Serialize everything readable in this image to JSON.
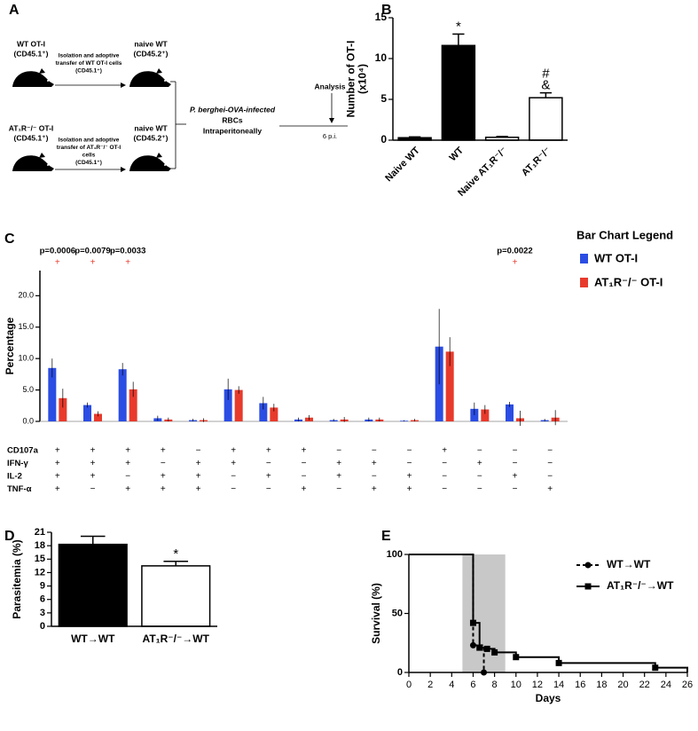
{
  "diagram": {
    "panel": "A",
    "rows": [
      {
        "donor": [
          "WT OT-I",
          "(CD45.1⁺)"
        ],
        "transfer": [
          "Isolation and adoptive",
          "transfer of WT OT-I cells",
          "(CD45.1⁺)"
        ],
        "recipient": [
          "naive WT",
          "(CD45.2⁺)"
        ]
      },
      {
        "donor": [
          "AT₁R⁻/⁻ OT-I",
          "(CD45.1⁺)"
        ],
        "transfer": [
          "Isolation and adoptive",
          "transfer of AT₁R⁻/⁻ OT-I",
          "cells",
          "(CD45.1⁺)"
        ],
        "recipient": [
          "naive WT",
          "(CD45.2⁺)"
        ]
      }
    ],
    "infection": [
      "P. berghei-OVA-infected",
      "RBCs",
      "Intraperitoneally"
    ],
    "analysis": "Analysis",
    "timepoint": "6 p.i."
  },
  "chart_data": [
    {
      "panel": "B",
      "type": "bar",
      "ylabel": [
        "Number of OT-I",
        "(x10⁴)"
      ],
      "categories": [
        "Naive WT",
        "WT",
        "Naive AT₁R⁻/⁻",
        "AT₁R⁻/⁻"
      ],
      "values": [
        0.3,
        11.6,
        0.35,
        5.2
      ],
      "errors": [
        0.1,
        1.4,
        0.1,
        0.6
      ],
      "colors": [
        "#000000",
        "#000000",
        "#ffffff",
        "#ffffff"
      ],
      "annotations": [
        null,
        [
          "*"
        ],
        null,
        [
          "#",
          "&"
        ]
      ],
      "ylim": [
        0,
        15
      ],
      "yticks": [
        0,
        5,
        10,
        15
      ]
    },
    {
      "panel": "C",
      "type": "grouped_bar",
      "ylabel": [
        "Percentage"
      ],
      "ylim": [
        0,
        24
      ],
      "yticks": [
        {
          "value": 0,
          "label": "0.0"
        },
        {
          "value": 5,
          "label": "5.0"
        },
        {
          "value": 10,
          "label": "10.0"
        },
        {
          "value": 15,
          "label": "15.0"
        },
        {
          "value": 20,
          "label": "20.0"
        }
      ],
      "legend_title": "Bar Chart Legend",
      "series": [
        {
          "name": "WT OT-I",
          "color": "#2b4de3",
          "values": [
            8.5,
            2.6,
            8.3,
            0.5,
            0.2,
            5.1,
            2.9,
            0.3,
            0.2,
            0.3,
            0.1,
            11.9,
            2.0,
            2.7,
            0.2
          ],
          "errors": [
            1.5,
            0.4,
            1.0,
            0.4,
            0.2,
            1.7,
            1.0,
            0.3,
            0.2,
            0.3,
            0.1,
            6.0,
            1.0,
            0.4,
            0.2
          ]
        },
        {
          "name": "AT₁R⁻/⁻ OT-I",
          "color": "#e83a2c",
          "values": [
            3.7,
            1.2,
            5.1,
            0.3,
            0.2,
            5.0,
            2.2,
            0.6,
            0.3,
            0.3,
            0.2,
            11.1,
            1.9,
            0.5,
            0.6
          ],
          "errors": [
            1.5,
            0.4,
            1.2,
            0.3,
            0.3,
            0.6,
            0.6,
            0.4,
            0.4,
            0.3,
            0.2,
            2.3,
            0.7,
            1.2,
            1.2
          ]
        }
      ],
      "p_values": [
        "p=0.0006",
        "p=0.0079",
        "p=0.0033",
        null,
        null,
        null,
        null,
        null,
        null,
        null,
        null,
        null,
        null,
        "p=0.0022",
        null
      ],
      "significance": [
        "+",
        "+",
        "+",
        null,
        null,
        null,
        null,
        null,
        null,
        null,
        null,
        null,
        null,
        "+",
        null
      ],
      "marker_rows": [
        "CD107a",
        "IFN-γ",
        "IL-2",
        "TNF-α"
      ],
      "marker_table": [
        [
          "+",
          "+",
          "+",
          "+",
          "−",
          "+",
          "+",
          "+",
          "−",
          "−",
          "−",
          "+",
          "−",
          "−",
          "−"
        ],
        [
          "+",
          "+",
          "+",
          "−",
          "+",
          "+",
          "−",
          "−",
          "+",
          "+",
          "−",
          "−",
          "+",
          "−",
          "−"
        ],
        [
          "+",
          "+",
          "−",
          "+",
          "+",
          "−",
          "+",
          "−",
          "+",
          "−",
          "+",
          "−",
          "−",
          "+",
          "−"
        ],
        [
          "+",
          "−",
          "+",
          "+",
          "+",
          "−",
          "−",
          "+",
          "−",
          "+",
          "+",
          "−",
          "−",
          "−",
          "+"
        ]
      ]
    },
    {
      "panel": "D",
      "type": "bar",
      "ylabel": [
        "Parasitemia (%)"
      ],
      "categories": [
        "WT→WT",
        "AT₁R⁻/⁻→WT"
      ],
      "values": [
        18.3,
        13.5
      ],
      "errors": [
        1.8,
        1.0
      ],
      "colors": [
        "#000000",
        "#ffffff"
      ],
      "annotations": [
        null,
        [
          "*"
        ]
      ],
      "ylim": [
        0,
        21
      ],
      "yticks": [
        0,
        3,
        6,
        9,
        12,
        15,
        18,
        21
      ]
    },
    {
      "panel": "E",
      "type": "survival",
      "ylabel": [
        "Survival (%)"
      ],
      "xlabel": "Days",
      "xlim": [
        0,
        26
      ],
      "xticks": [
        0,
        2,
        4,
        6,
        8,
        10,
        12,
        14,
        16,
        18,
        20,
        22,
        24,
        26
      ],
      "ylim": [
        0,
        100
      ],
      "yticks": [
        0,
        50,
        100
      ],
      "shaded_x": [
        5,
        9
      ],
      "legend": "upper right",
      "series": [
        {
          "name": "WT→WT",
          "color": "#000000",
          "dashed": true,
          "marker": "circle",
          "x": [
            0,
            6,
            7
          ],
          "values": [
            100,
            23,
            0
          ]
        },
        {
          "name": "AT₁R⁻/⁻→WT",
          "color": "#000000",
          "dashed": false,
          "marker": "square",
          "x": [
            0,
            6,
            6.6,
            7.3,
            8,
            10,
            14,
            23,
            26
          ],
          "values": [
            100,
            42,
            21,
            20,
            17,
            13,
            8,
            4,
            0
          ]
        }
      ]
    }
  ]
}
